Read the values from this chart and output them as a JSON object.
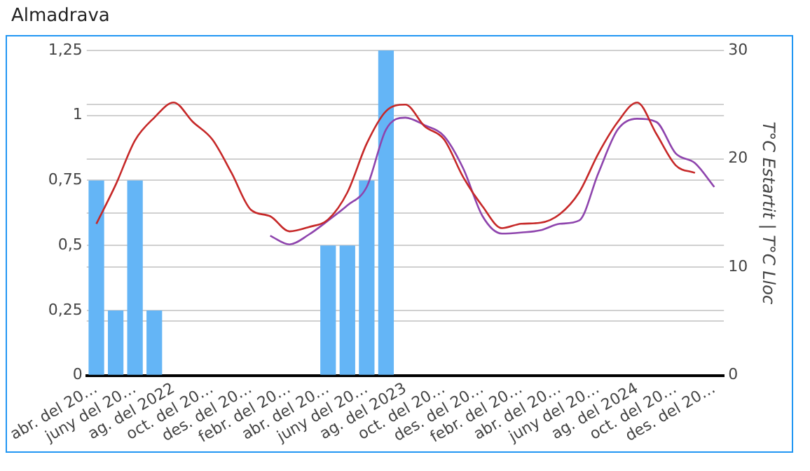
{
  "chart_data": {
    "type": "bar",
    "title": "Almadrava",
    "y2label": "T°C Estartit | T°C Lloc",
    "categories": [
      "abr. del 20…",
      null,
      "juny del 20…",
      null,
      "ag. del 2022",
      null,
      "oct. del 20…",
      null,
      "des. del 20…",
      null,
      "febr. del 20…",
      null,
      "abr. del 20…",
      null,
      "juny del 20…",
      null,
      "ag. del 2023",
      null,
      "oct. del 20…",
      null,
      "des. del 20…",
      null,
      "febr. del 20…",
      null,
      "abr. del 20…",
      null,
      "juny del 20…",
      null,
      "ag. del 2024",
      null,
      "oct. del 20…",
      null,
      "des. del 20…"
    ],
    "series": [
      {
        "color": "#64b5f6",
        "values": [
          0.75,
          0.25,
          0.75,
          0.25,
          null,
          null,
          null,
          null,
          null,
          null,
          null,
          null,
          0.5,
          0.5,
          0.75,
          1.25,
          null,
          null,
          null,
          null,
          null,
          null,
          null,
          null,
          null,
          null,
          null,
          null,
          null,
          null,
          null,
          null,
          null
        ]
      },
      {
        "type": "line",
        "axis": "y2",
        "color": "#c62828",
        "values": [
          14.0,
          17.6,
          21.7,
          23.8,
          25.2,
          23.4,
          21.8,
          18.7,
          15.3,
          14.7,
          13.3,
          13.7,
          14.4,
          16.9,
          21.4,
          24.4,
          25.0,
          23.0,
          21.8,
          18.3,
          15.6,
          13.6,
          14.0,
          14.1,
          14.9,
          16.9,
          20.5,
          23.4,
          25.2,
          22.3,
          19.4,
          18.7,
          null
        ]
      },
      {
        "type": "line",
        "axis": "y2",
        "color": "#8e44ad",
        "values": [
          null,
          null,
          null,
          null,
          null,
          null,
          null,
          null,
          null,
          12.9,
          12.1,
          13.0,
          14.3,
          15.7,
          17.4,
          22.7,
          23.8,
          23.1,
          22.1,
          19.1,
          14.7,
          13.1,
          13.2,
          13.4,
          14.0,
          14.3,
          18.7,
          22.7,
          23.7,
          23.4,
          20.5,
          19.6,
          17.4
        ]
      }
    ],
    "ylim": [
      0,
      1.25
    ],
    "yticks": [
      0,
      {
        "value": 0.25,
        "label": "0,25"
      },
      {
        "value": 0.5,
        "label": "0,5"
      },
      {
        "value": 0.75,
        "label": "0,75"
      },
      1,
      {
        "value": 1.25,
        "label": "1,25"
      }
    ],
    "y2lim": [
      0,
      30
    ],
    "y2ticks": [
      0,
      {
        "value": 5,
        "label": null
      },
      10,
      {
        "value": 15,
        "label": null
      },
      20,
      {
        "value": 25,
        "label": null
      },
      30
    ],
    "grid": true,
    "legend": false,
    "marker": "none",
    "line_style": "solid"
  }
}
